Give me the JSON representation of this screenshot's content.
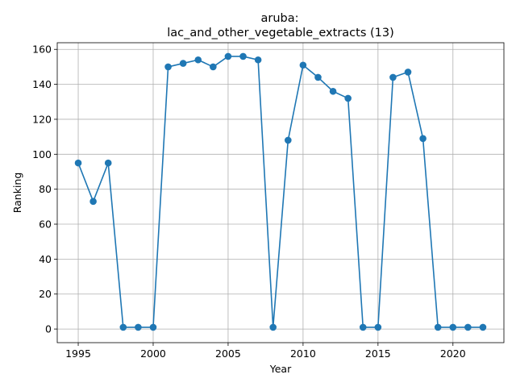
{
  "chart_data": {
    "type": "line",
    "title_line1": "aruba:",
    "title_line2": "lac_and_other_vegetable_extracts (13)",
    "xlabel": "Year",
    "ylabel": "Ranking",
    "xlim": [
      1993.6,
      2023.4
    ],
    "ylim": [
      -7.8,
      163.8
    ],
    "xticks": [
      1995,
      2000,
      2005,
      2010,
      2015,
      2020
    ],
    "yticks": [
      0,
      20,
      40,
      60,
      80,
      100,
      120,
      140,
      160
    ],
    "grid": true,
    "color": "#1f77b4",
    "marker": "circle",
    "x": [
      1995,
      1996,
      1997,
      1998,
      1999,
      2000,
      2001,
      2002,
      2003,
      2004,
      2005,
      2006,
      2007,
      2008,
      2009,
      2010,
      2011,
      2012,
      2013,
      2014,
      2015,
      2016,
      2017,
      2018,
      2019,
      2020,
      2021,
      2022
    ],
    "y": [
      95,
      73,
      95,
      1,
      1,
      1,
      150,
      152,
      154,
      150,
      156,
      156,
      154,
      1,
      108,
      151,
      144,
      136,
      132,
      1,
      1,
      144,
      147,
      109,
      1,
      1,
      1,
      1
    ]
  }
}
